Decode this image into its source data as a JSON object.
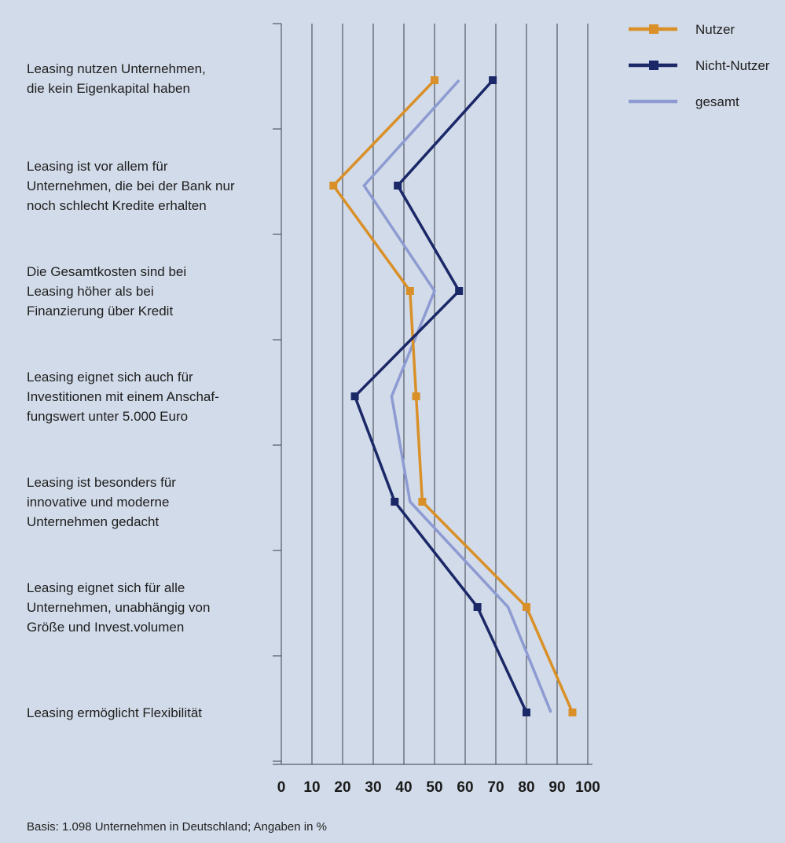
{
  "chart_data": {
    "type": "line",
    "orientation": "horizontal-categories",
    "categories": [
      "Leasing nutzen Unternehmen,\ndie kein Eigenkapital haben",
      "Leasing ist vor allem für\nUnternehmen, die bei der Bank nur\nnoch schlecht Kredite erhalten",
      "Die Gesamtkosten sind bei\nLeasing höher als bei\nFinanzierung über Kredit",
      "Leasing eignet sich auch für\nInvestitionen mit einem Anschaf-\nfungswert unter 5.000 Euro",
      "Leasing ist besonders für\ninnovative und moderne\nUnternehmen gedacht",
      "Leasing eignet sich für alle\nUnternehmen, unabhängig von\nGröße und Invest.volumen",
      "Leasing ermöglicht Flexibilität"
    ],
    "series": [
      {
        "name": "Nutzer",
        "color": "#d99028",
        "marker": "square",
        "values": [
          50,
          17,
          42,
          44,
          46,
          80,
          95
        ]
      },
      {
        "name": "Nicht-Nutzer",
        "color": "#1b2868",
        "marker": "square",
        "values": [
          69,
          38,
          58,
          24,
          37,
          64,
          80
        ]
      },
      {
        "name": "gesamt",
        "color": "#8e9bd2",
        "marker": "none",
        "values": [
          58,
          27,
          50,
          36,
          42,
          74,
          88
        ]
      }
    ],
    "value_axis": {
      "range": [
        0,
        100
      ],
      "ticks": [
        "0",
        "10",
        "20",
        "30",
        "40",
        "50",
        "60",
        "70",
        "80",
        "90",
        "100"
      ]
    },
    "grid": true,
    "legend_placement": "top-right",
    "note": "Basis: 1.098 Unternehmen in Deutschland; Angaben in %"
  }
}
